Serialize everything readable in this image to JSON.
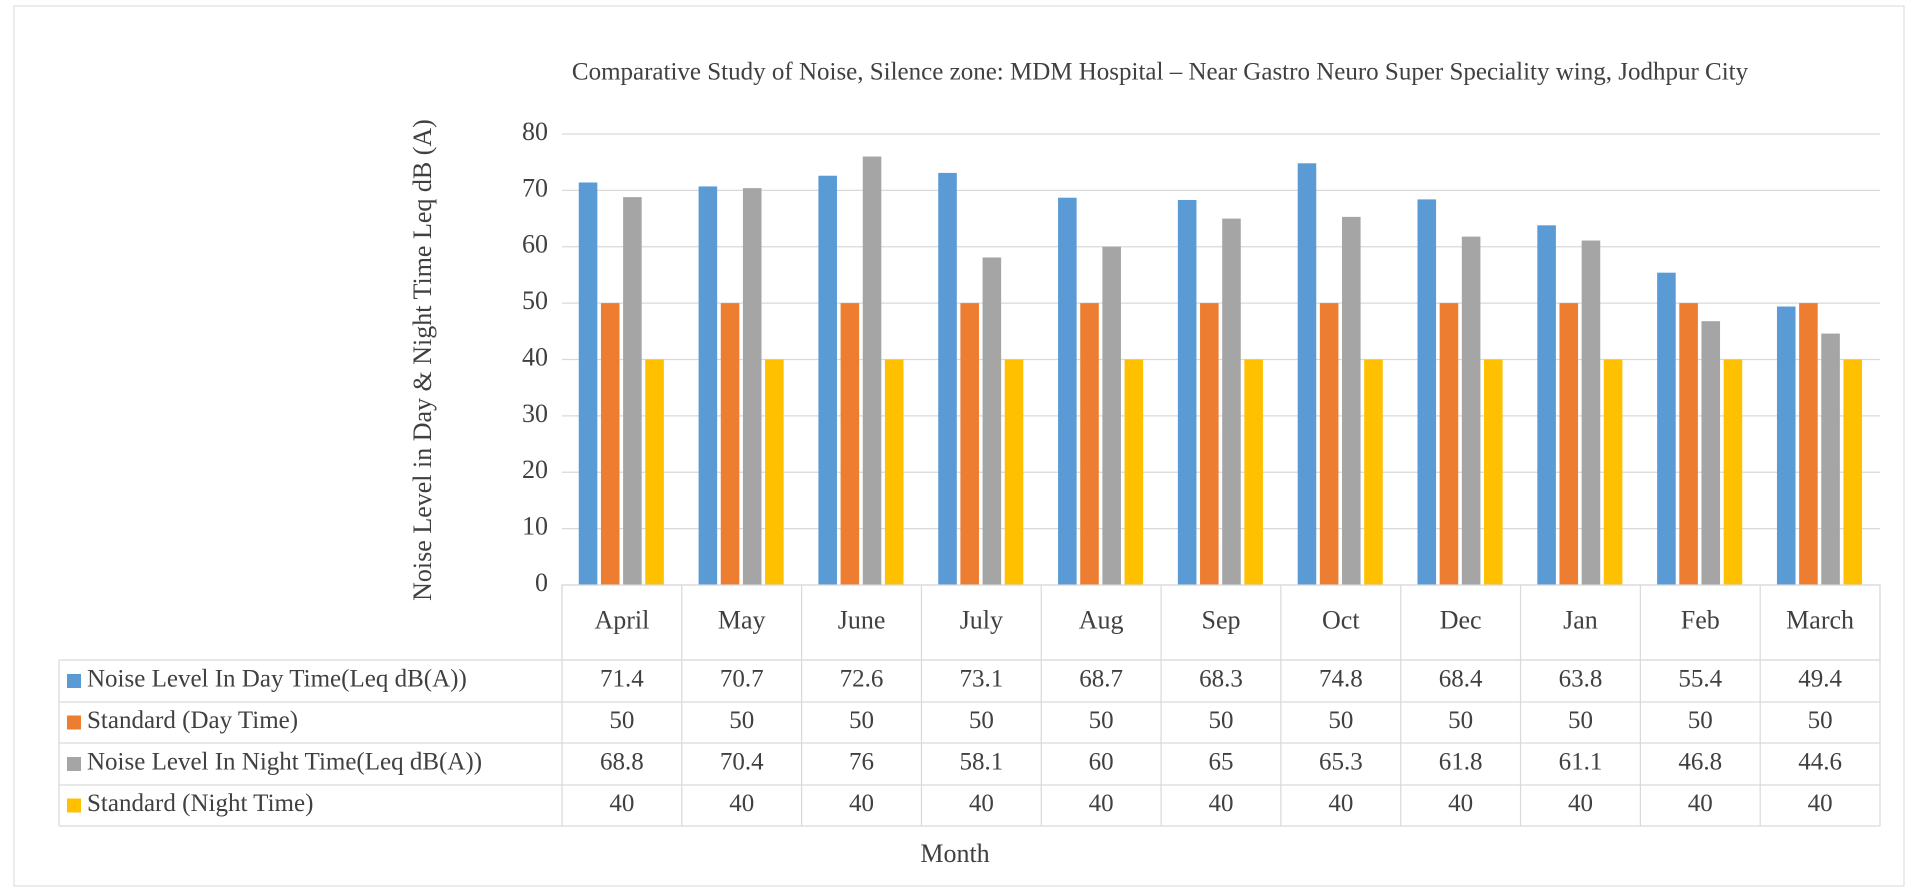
{
  "chart_data": {
    "type": "bar",
    "title": "Comparative Study of Noise, Silence zone: MDM Hospital – Near Gastro Neuro Super Speciality wing, Jodhpur City",
    "y_label": "Noise Level in Day & Night Time Leq dB (A)",
    "x_label": "Month",
    "categories": [
      "April",
      "May",
      "June",
      "July",
      "Aug",
      "Sep",
      "Oct",
      "Dec",
      "Jan",
      "Feb",
      "March"
    ],
    "series": [
      {
        "name": "Noise Level In Day Time(Leq dB(A))",
        "color": "#5b9bd5",
        "values": [
          71.4,
          70.7,
          72.6,
          73.1,
          68.7,
          68.3,
          74.8,
          68.4,
          63.8,
          55.4,
          49.4
        ]
      },
      {
        "name": "Standard (Day Time)",
        "color": "#ed7d31",
        "values": [
          50,
          50,
          50,
          50,
          50,
          50,
          50,
          50,
          50,
          50,
          50
        ]
      },
      {
        "name": "Noise Level In Night Time(Leq dB(A))",
        "color": "#a5a5a5",
        "values": [
          68.8,
          70.4,
          76,
          58.1,
          60,
          65,
          65.3,
          61.8,
          61.1,
          46.8,
          44.6
        ]
      },
      {
        "name": "Standard (Night Time)",
        "color": "#ffc000",
        "values": [
          40,
          40,
          40,
          40,
          40,
          40,
          40,
          40,
          40,
          40,
          40
        ]
      }
    ],
    "ylim": [
      0,
      80
    ],
    "yticks": [
      0,
      10,
      20,
      30,
      40,
      50,
      60,
      70,
      80
    ],
    "grid": true
  }
}
